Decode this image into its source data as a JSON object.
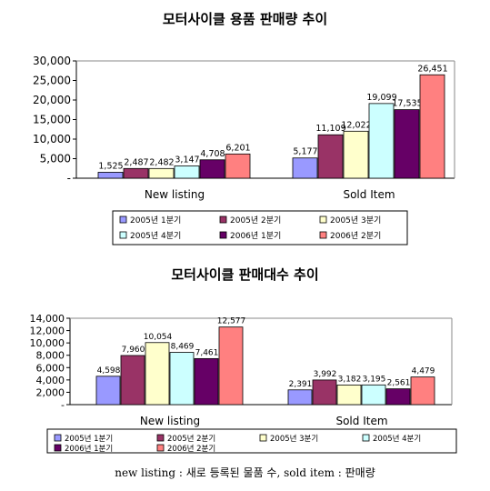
{
  "chart_data": [
    {
      "type": "bar",
      "title": "모터사이클 용품 판매량 추이",
      "categories": [
        "New listing",
        "Sold Item"
      ],
      "series": [
        {
          "name": "2005년 1분기",
          "values": [
            1525,
            5177
          ],
          "labels": [
            "1,525",
            "5,177"
          ]
        },
        {
          "name": "2005년 2분기",
          "values": [
            2487,
            11109
          ],
          "labels": [
            "2,487",
            "11,109"
          ]
        },
        {
          "name": "2005년 3분기",
          "values": [
            2482,
            12022
          ],
          "labels": [
            "2,482",
            "12,022"
          ]
        },
        {
          "name": "2005년 4분기",
          "values": [
            3147,
            19099
          ],
          "labels": [
            "3,147",
            "19,099"
          ]
        },
        {
          "name": "2006년 1분기",
          "values": [
            4708,
            17535
          ],
          "labels": [
            "4,708",
            "17,535"
          ]
        },
        {
          "name": "2006년 2분기",
          "values": [
            6201,
            26451
          ],
          "labels": [
            "6,201",
            "26,451"
          ]
        }
      ],
      "ylim": [
        0,
        30000
      ],
      "yticks": [
        "-",
        "5,000",
        "10,000",
        "15,000",
        "20,000",
        "25,000",
        "30,000"
      ],
      "legend_position": "bottom",
      "grid": false
    },
    {
      "type": "bar",
      "title": "모터사이클 판매대수 추이",
      "categories": [
        "New listing",
        "Sold Item"
      ],
      "series": [
        {
          "name": "2005년 1분기",
          "values": [
            4598,
            2391
          ],
          "labels": [
            "4,598",
            "2,391"
          ]
        },
        {
          "name": "2005년 2분기",
          "values": [
            7960,
            3992
          ],
          "labels": [
            "7,960",
            "3,992"
          ]
        },
        {
          "name": "2005년 3분기",
          "values": [
            10054,
            3182
          ],
          "labels": [
            "10,054",
            "3,182"
          ]
        },
        {
          "name": "2005년 4분기",
          "values": [
            8469,
            3195
          ],
          "labels": [
            "8,469",
            "3,195"
          ]
        },
        {
          "name": "2006년 1분기",
          "values": [
            7461,
            2561
          ],
          "labels": [
            "7,461",
            "2,561"
          ]
        },
        {
          "name": "2006년 2분기",
          "values": [
            12577,
            4479
          ],
          "labels": [
            "12,577",
            "4,479"
          ]
        }
      ],
      "ylim": [
        0,
        14000
      ],
      "yticks": [
        "-",
        "2,000",
        "4,000",
        "6,000",
        "8,000",
        "10,000",
        "12,000",
        "14,000"
      ],
      "legend_position": "bottom",
      "grid": false
    }
  ],
  "colors": [
    "#9999FF",
    "#993366",
    "#FFFFCC",
    "#CCFFFF",
    "#660066",
    "#FF8080"
  ],
  "footnote": "new listing : 새로 등록된 물품 수, sold item : 판매량"
}
